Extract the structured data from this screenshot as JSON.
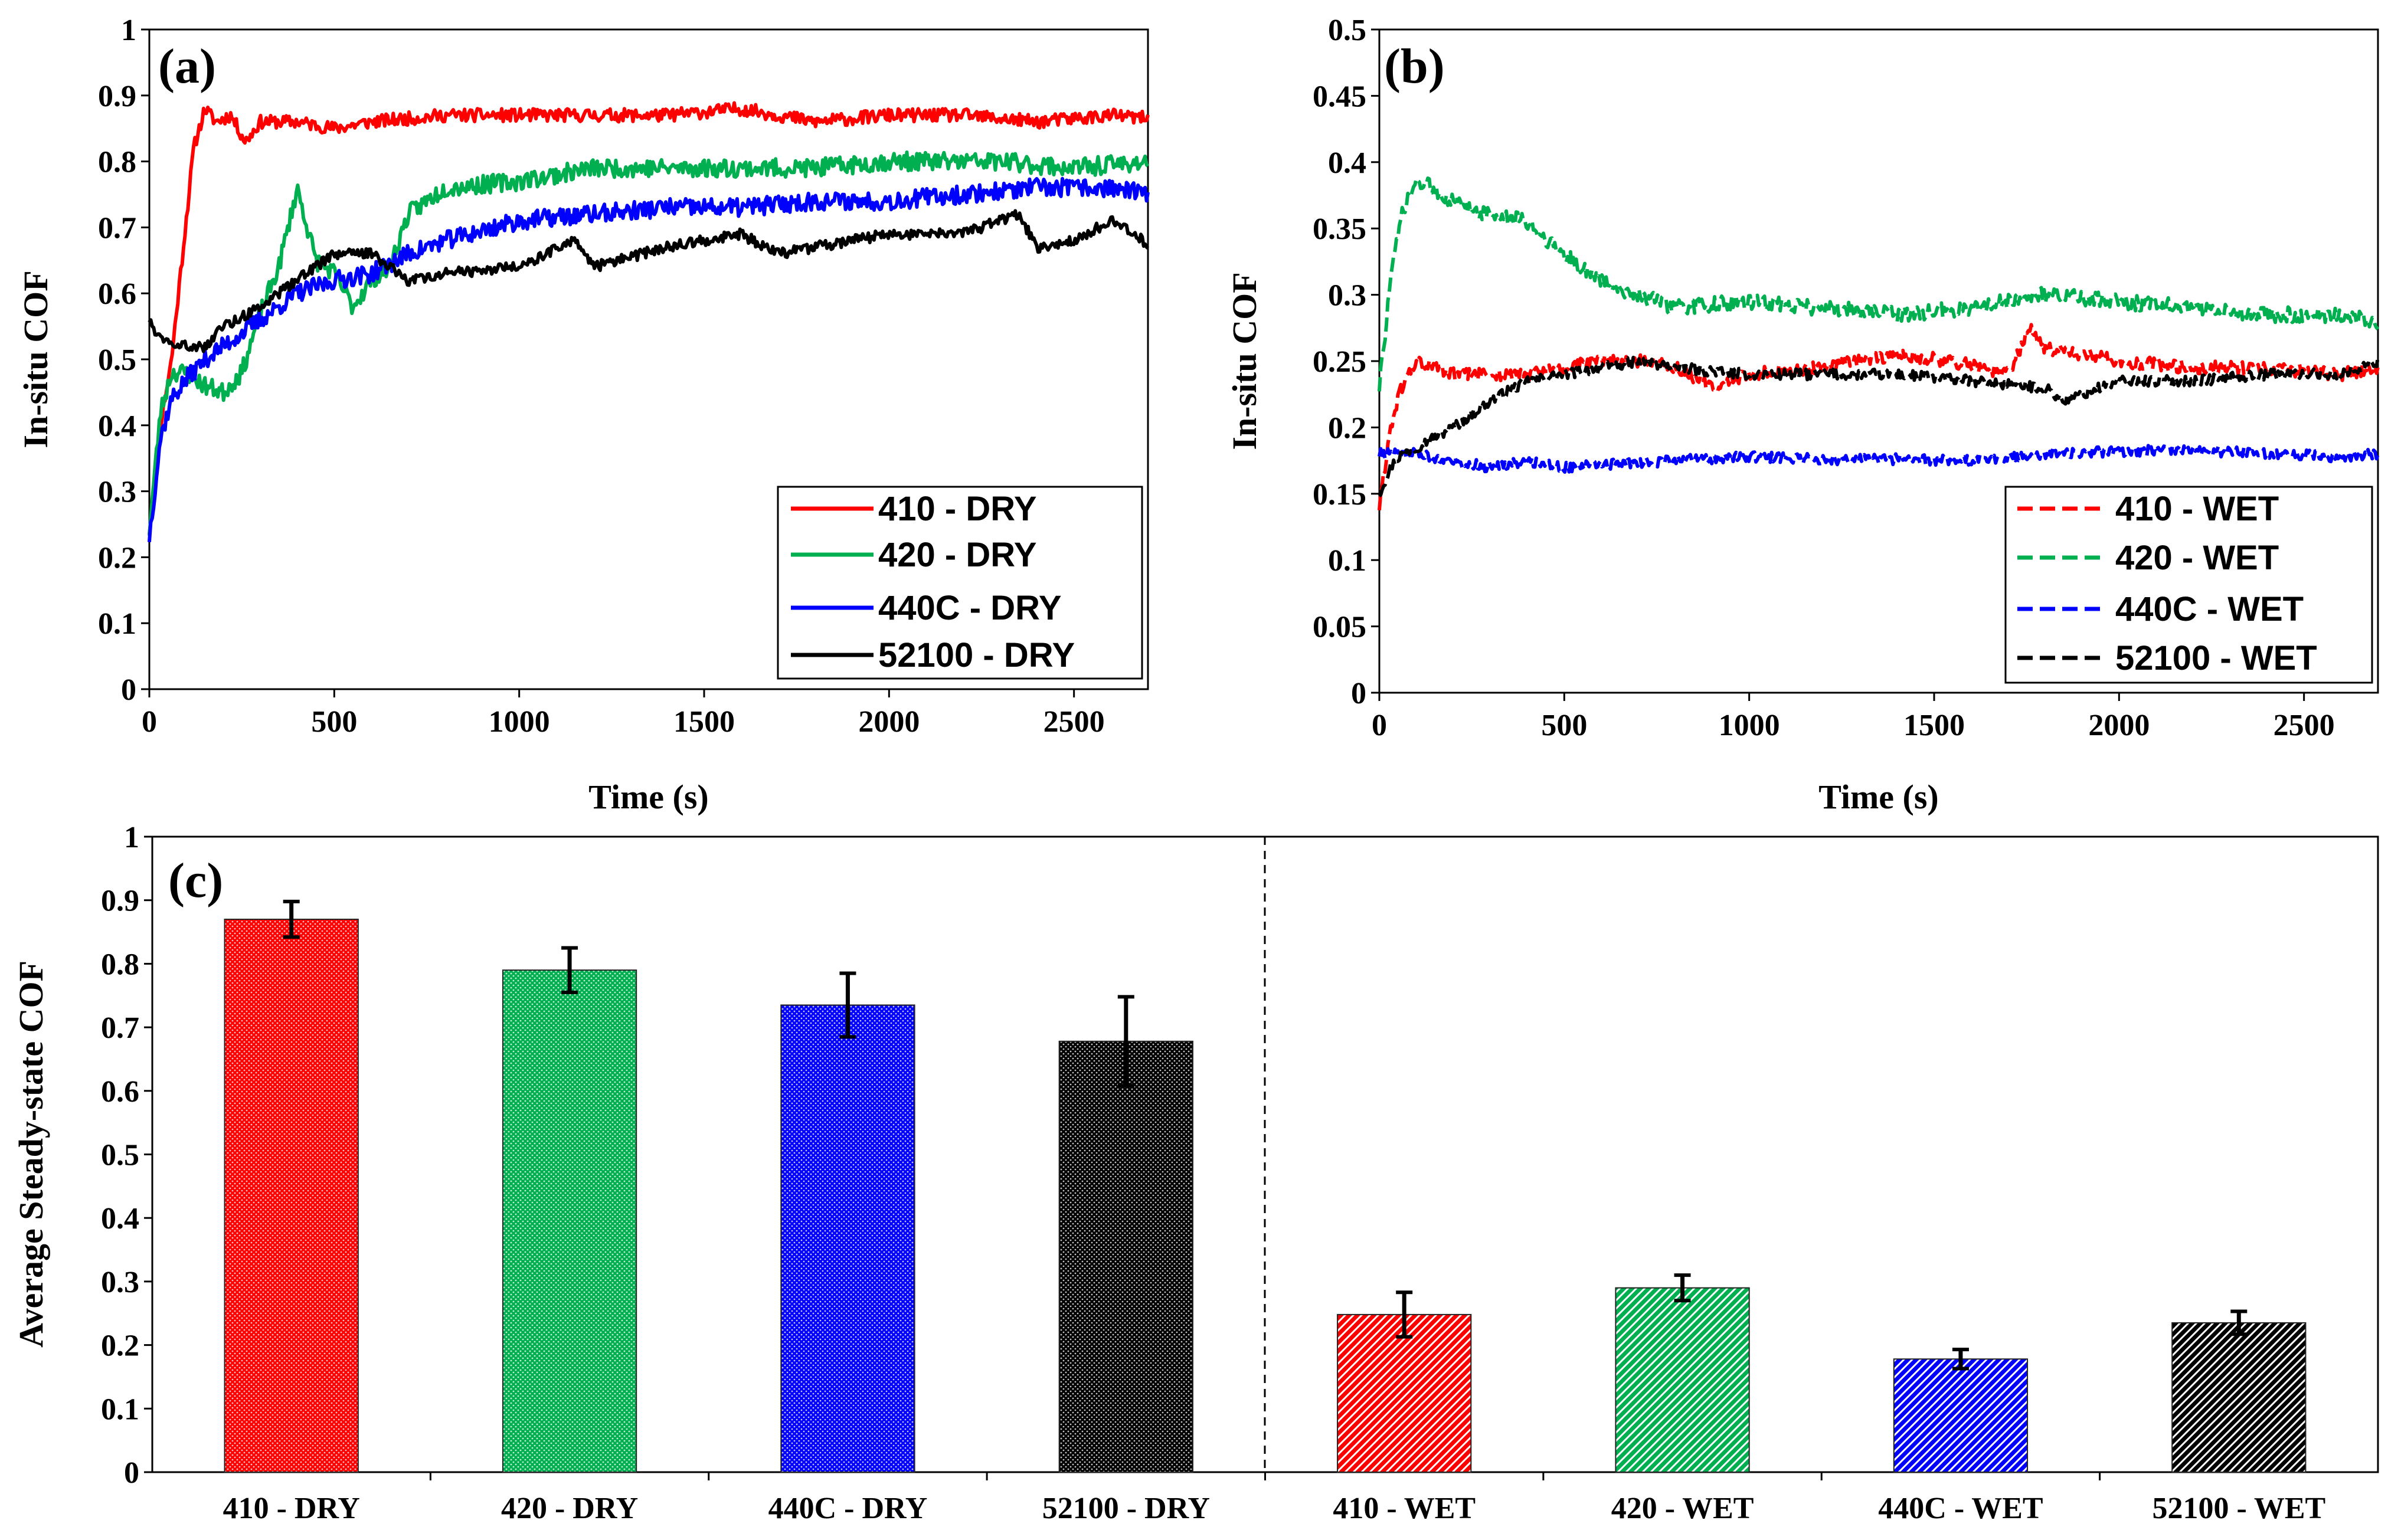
{
  "chart_data": [
    {
      "id": "a",
      "type": "line",
      "panel_label": "(a)",
      "xlabel": "Time (s)",
      "ylabel": "In-situ COF",
      "xlim": [
        0,
        2700
      ],
      "ylim": [
        0,
        1
      ],
      "xticks": [
        0,
        500,
        1000,
        1500,
        2000,
        2500
      ],
      "yticks": [
        0,
        0.1,
        0.2,
        0.3,
        0.4,
        0.5,
        0.6,
        0.7,
        0.8,
        0.9,
        1
      ],
      "ytick_labels": [
        "0",
        "0.1",
        "0.2",
        "0.3",
        "0.4",
        "0.5",
        "0.6",
        "0.7",
        "0.8",
        "0.9",
        "1"
      ],
      "legend_position": "bottom-right",
      "series": [
        {
          "name": "410 - DRY",
          "color": "#ff0000",
          "dash": false,
          "noise": 0.01,
          "seed": 11,
          "x": [
            0,
            30,
            60,
            90,
            120,
            150,
            180,
            220,
            260,
            300,
            400,
            500,
            600,
            800,
            1000,
            1200,
            1400,
            1600,
            1800,
            2000,
            2200,
            2400,
            2600,
            2700
          ],
          "y": [
            0.24,
            0.4,
            0.5,
            0.66,
            0.82,
            0.88,
            0.86,
            0.87,
            0.83,
            0.86,
            0.86,
            0.85,
            0.86,
            0.87,
            0.87,
            0.87,
            0.87,
            0.88,
            0.86,
            0.87,
            0.87,
            0.86,
            0.87,
            0.865
          ]
        },
        {
          "name": "420 - DRY",
          "color": "#00b050",
          "dash": false,
          "noise": 0.014,
          "seed": 23,
          "x": [
            0,
            30,
            60,
            100,
            150,
            200,
            250,
            300,
            350,
            400,
            450,
            500,
            550,
            600,
            650,
            700,
            800,
            1000,
            1200,
            1500,
            1800,
            2000,
            2300,
            2500,
            2700
          ],
          "y": [
            0.24,
            0.42,
            0.48,
            0.48,
            0.46,
            0.45,
            0.48,
            0.57,
            0.64,
            0.76,
            0.65,
            0.63,
            0.58,
            0.62,
            0.64,
            0.72,
            0.76,
            0.77,
            0.79,
            0.79,
            0.79,
            0.8,
            0.8,
            0.79,
            0.8
          ]
        },
        {
          "name": "440C - DRY",
          "color": "#0000ff",
          "dash": false,
          "noise": 0.014,
          "seed": 37,
          "x": [
            0,
            30,
            60,
            100,
            150,
            200,
            300,
            400,
            500,
            600,
            700,
            800,
            1000,
            1200,
            1400,
            1600,
            1800,
            2000,
            2200,
            2400,
            2600,
            2700
          ],
          "y": [
            0.23,
            0.38,
            0.44,
            0.47,
            0.5,
            0.52,
            0.56,
            0.6,
            0.62,
            0.63,
            0.66,
            0.68,
            0.71,
            0.72,
            0.73,
            0.73,
            0.74,
            0.74,
            0.75,
            0.76,
            0.76,
            0.75
          ]
        },
        {
          "name": "52100 - DRY",
          "color": "#000000",
          "dash": false,
          "noise": 0.008,
          "seed": 49,
          "x": [
            0,
            20,
            50,
            100,
            150,
            200,
            300,
            400,
            500,
            600,
            700,
            800,
            1000,
            1150,
            1200,
            1400,
            1600,
            1700,
            1800,
            2000,
            2200,
            2350,
            2400,
            2500,
            2600,
            2700
          ],
          "y": [
            0.56,
            0.54,
            0.53,
            0.52,
            0.52,
            0.55,
            0.58,
            0.62,
            0.66,
            0.66,
            0.62,
            0.63,
            0.64,
            0.68,
            0.64,
            0.67,
            0.69,
            0.66,
            0.67,
            0.69,
            0.69,
            0.72,
            0.67,
            0.68,
            0.71,
            0.675
          ]
        }
      ]
    },
    {
      "id": "b",
      "type": "line",
      "panel_label": "(b)",
      "xlabel": "Time (s)",
      "ylabel": "In-situ COF",
      "xlim": [
        0,
        2700
      ],
      "ylim": [
        0,
        0.5
      ],
      "xticks": [
        0,
        500,
        1000,
        1500,
        2000,
        2500
      ],
      "yticks": [
        0,
        0.05,
        0.1,
        0.15,
        0.2,
        0.25,
        0.3,
        0.35,
        0.4,
        0.45,
        0.5
      ],
      "ytick_labels": [
        "0",
        "0.05",
        "0.1",
        "0.15",
        "0.2",
        "0.25",
        "0.3",
        "0.35",
        "0.4",
        "0.45",
        "0.5"
      ],
      "legend_position": "bottom-right",
      "series": [
        {
          "name": "410 - WET",
          "color": "#ff0000",
          "dash": true,
          "noise": 0.005,
          "seed": 61,
          "x": [
            0,
            30,
            60,
            100,
            150,
            200,
            300,
            400,
            500,
            600,
            700,
            800,
            900,
            1000,
            1200,
            1400,
            1550,
            1700,
            1760,
            1800,
            1900,
            2000,
            2200,
            2400,
            2600,
            2700
          ],
          "y": [
            0.14,
            0.2,
            0.23,
            0.25,
            0.245,
            0.24,
            0.24,
            0.24,
            0.245,
            0.25,
            0.25,
            0.245,
            0.23,
            0.24,
            0.245,
            0.255,
            0.25,
            0.24,
            0.275,
            0.26,
            0.255,
            0.25,
            0.245,
            0.245,
            0.24,
            0.245
          ]
        },
        {
          "name": "420 - WET",
          "color": "#00b050",
          "dash": true,
          "noise": 0.006,
          "seed": 73,
          "x": [
            0,
            30,
            60,
            100,
            150,
            200,
            300,
            400,
            500,
            600,
            700,
            800,
            1000,
            1200,
            1400,
            1600,
            1800,
            2000,
            2200,
            2400,
            2600,
            2700
          ],
          "y": [
            0.23,
            0.31,
            0.36,
            0.385,
            0.38,
            0.37,
            0.36,
            0.355,
            0.33,
            0.31,
            0.3,
            0.29,
            0.295,
            0.29,
            0.285,
            0.29,
            0.3,
            0.295,
            0.29,
            0.285,
            0.285,
            0.28
          ]
        },
        {
          "name": "440C - WET",
          "color": "#0000ff",
          "dash": true,
          "noise": 0.004,
          "seed": 85,
          "x": [
            0,
            100,
            200,
            300,
            400,
            500,
            600,
            800,
            1000,
            1200,
            1400,
            1600,
            1800,
            2000,
            2200,
            2400,
            2600,
            2700
          ],
          "y": [
            0.18,
            0.18,
            0.175,
            0.17,
            0.175,
            0.17,
            0.172,
            0.175,
            0.178,
            0.176,
            0.176,
            0.175,
            0.18,
            0.182,
            0.183,
            0.18,
            0.178,
            0.18
          ]
        },
        {
          "name": "52100 - WET",
          "color": "#000000",
          "dash": true,
          "noise": 0.004,
          "seed": 97,
          "x": [
            0,
            30,
            60,
            100,
            200,
            300,
            400,
            500,
            600,
            700,
            800,
            1000,
            1200,
            1400,
            1600,
            1800,
            1850,
            2000,
            2200,
            2400,
            2600,
            2700
          ],
          "y": [
            0.15,
            0.17,
            0.18,
            0.185,
            0.2,
            0.22,
            0.235,
            0.24,
            0.245,
            0.25,
            0.245,
            0.24,
            0.24,
            0.24,
            0.235,
            0.23,
            0.22,
            0.235,
            0.235,
            0.24,
            0.24,
            0.25
          ]
        }
      ]
    },
    {
      "id": "c",
      "type": "bar",
      "panel_label": "(c)",
      "ylabel": "Average Steady-state COF",
      "ylim": [
        0,
        1
      ],
      "yticks": [
        0,
        0.1,
        0.2,
        0.3,
        0.4,
        0.5,
        0.6,
        0.7,
        0.8,
        0.9,
        1
      ],
      "ytick_labels": [
        "0",
        "0.1",
        "0.2",
        "0.3",
        "0.4",
        "0.5",
        "0.6",
        "0.7",
        "0.8",
        "0.9",
        "1"
      ],
      "categories": [
        "410 - DRY",
        "420 - DRY",
        "440C - DRY",
        "52100 - DRY",
        "410 - WET",
        "420 - WET",
        "440C - WET",
        "52100 - WET"
      ],
      "values": [
        0.87,
        0.79,
        0.735,
        0.678,
        0.248,
        0.29,
        0.178,
        0.235
      ],
      "error": [
        0.028,
        0.035,
        0.05,
        0.07,
        0.035,
        0.02,
        0.015,
        0.018
      ],
      "colors": [
        "#ff0000",
        "#00b050",
        "#0000ff",
        "#000000",
        "#ff0000",
        "#00b050",
        "#0000ff",
        "#000000"
      ],
      "pattern": [
        "dots",
        "dots",
        "dots",
        "dots",
        "diag",
        "diag",
        "diag",
        "diag"
      ],
      "divider_after_index": 3
    }
  ]
}
